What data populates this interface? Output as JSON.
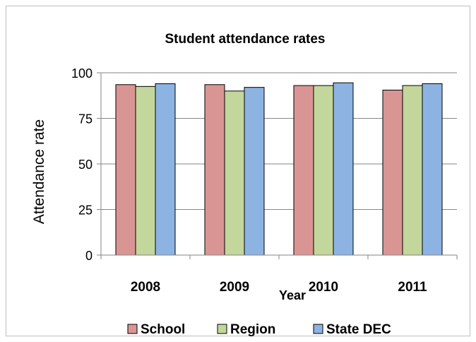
{
  "chart_data": {
    "type": "bar",
    "title": "Student attendance rates",
    "xlabel": "Year",
    "ylabel": "Attendance rate",
    "categories": [
      "2008",
      "2009",
      "2010",
      "2011"
    ],
    "series": [
      {
        "name": "School",
        "values": [
          93.5,
          93.5,
          93.0,
          90.5
        ]
      },
      {
        "name": "Region",
        "values": [
          92.5,
          90.0,
          93.0,
          93.0
        ]
      },
      {
        "name": "State DEC",
        "values": [
          94.0,
          92.0,
          94.5,
          94.0
        ]
      }
    ],
    "ylim": [
      0,
      100
    ],
    "yticks": [
      0,
      25,
      50,
      75,
      100
    ],
    "grid": true,
    "legend": "bottom",
    "colors": {
      "School": "#d99594",
      "Region": "#c3d69b",
      "State DEC": "#8db3e2"
    }
  }
}
